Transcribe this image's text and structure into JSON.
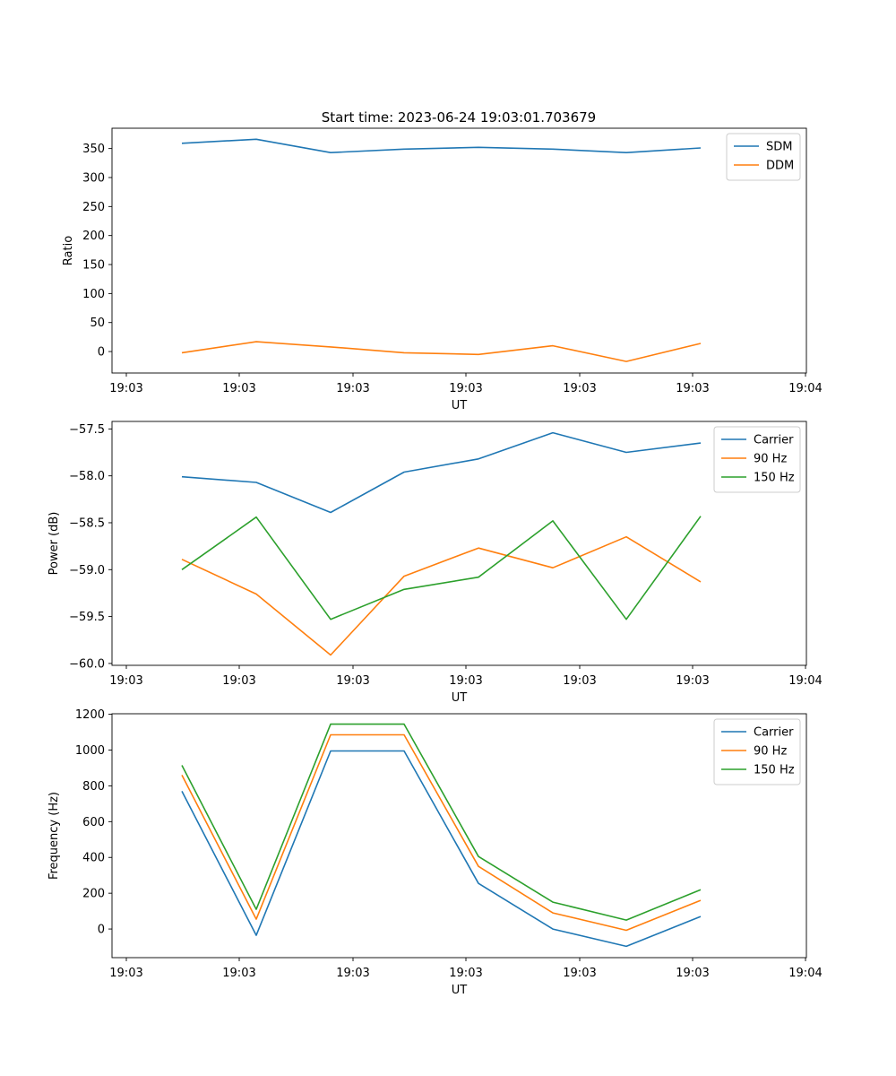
{
  "title": "Start time: 2023-06-24 19:03:01.703679",
  "colors": {
    "blue": "#1f77b4",
    "orange": "#ff7f0e",
    "green": "#2ca02c"
  },
  "chart_data": [
    {
      "type": "line",
      "xlabel": "UT",
      "ylabel": "Ratio",
      "x_tick_labels": [
        "19:03",
        "19:03",
        "19:03",
        "19:03",
        "19:03",
        "19:03",
        "19:04"
      ],
      "yticks": [
        0,
        50,
        100,
        150,
        200,
        250,
        300,
        350
      ],
      "ytick_labels": [
        "0",
        "50",
        "100",
        "150",
        "200",
        "250",
        "300",
        "350"
      ],
      "ylim": [
        -37,
        385
      ],
      "grid": false,
      "legend": "top-right",
      "series": [
        {
          "name": "SDM",
          "color": "#1f77b4",
          "values": [
            359,
            366,
            343,
            349,
            352,
            349,
            343,
            351
          ]
        },
        {
          "name": "DDM",
          "color": "#ff7f0e",
          "values": [
            -2,
            17,
            8,
            -2,
            -5,
            10,
            -17,
            14
          ]
        }
      ]
    },
    {
      "type": "line",
      "xlabel": "UT",
      "ylabel": "Power (dB)",
      "x_tick_labels": [
        "19:03",
        "19:03",
        "19:03",
        "19:03",
        "19:03",
        "19:03",
        "19:04"
      ],
      "yticks": [
        -60.0,
        -59.5,
        -59.0,
        -58.5,
        -58.0,
        -57.5
      ],
      "ytick_labels": [
        "−60.0",
        "−59.5",
        "−59.0",
        "−58.5",
        "−58.0",
        "−57.5"
      ],
      "ylim": [
        -60.02,
        -57.42
      ],
      "grid": false,
      "legend": "top-right",
      "series": [
        {
          "name": "Carrier",
          "color": "#1f77b4",
          "values": [
            -58.01,
            -58.07,
            -58.39,
            -57.96,
            -57.82,
            -57.54,
            -57.75,
            -57.65
          ]
        },
        {
          "name": "90 Hz",
          "color": "#ff7f0e",
          "values": [
            -58.89,
            -59.26,
            -59.91,
            -59.07,
            -58.77,
            -58.98,
            -58.65,
            -59.13
          ]
        },
        {
          "name": "150 Hz",
          "color": "#2ca02c",
          "values": [
            -59.0,
            -58.44,
            -59.53,
            -59.21,
            -59.08,
            -58.48,
            -59.53,
            -58.43
          ]
        }
      ]
    },
    {
      "type": "line",
      "xlabel": "UT",
      "ylabel": "Frequency (Hz)",
      "x_tick_labels": [
        "19:03",
        "19:03",
        "19:03",
        "19:03",
        "19:03",
        "19:03",
        "19:04"
      ],
      "yticks": [
        0,
        200,
        400,
        600,
        800,
        1000,
        1200
      ],
      "ytick_labels": [
        "0",
        "200",
        "400",
        "600",
        "800",
        "1000",
        "1200"
      ],
      "ylim": [
        -160,
        1203
      ],
      "grid": false,
      "legend": "top-right",
      "series": [
        {
          "name": "Carrier",
          "color": "#1f77b4",
          "values": [
            770,
            -35,
            995,
            995,
            255,
            0,
            -97,
            70
          ]
        },
        {
          "name": "90 Hz",
          "color": "#ff7f0e",
          "values": [
            860,
            55,
            1085,
            1085,
            350,
            90,
            -7,
            160
          ]
        },
        {
          "name": "150 Hz",
          "color": "#2ca02c",
          "values": [
            915,
            110,
            1145,
            1145,
            405,
            150,
            50,
            220
          ]
        }
      ]
    }
  ]
}
